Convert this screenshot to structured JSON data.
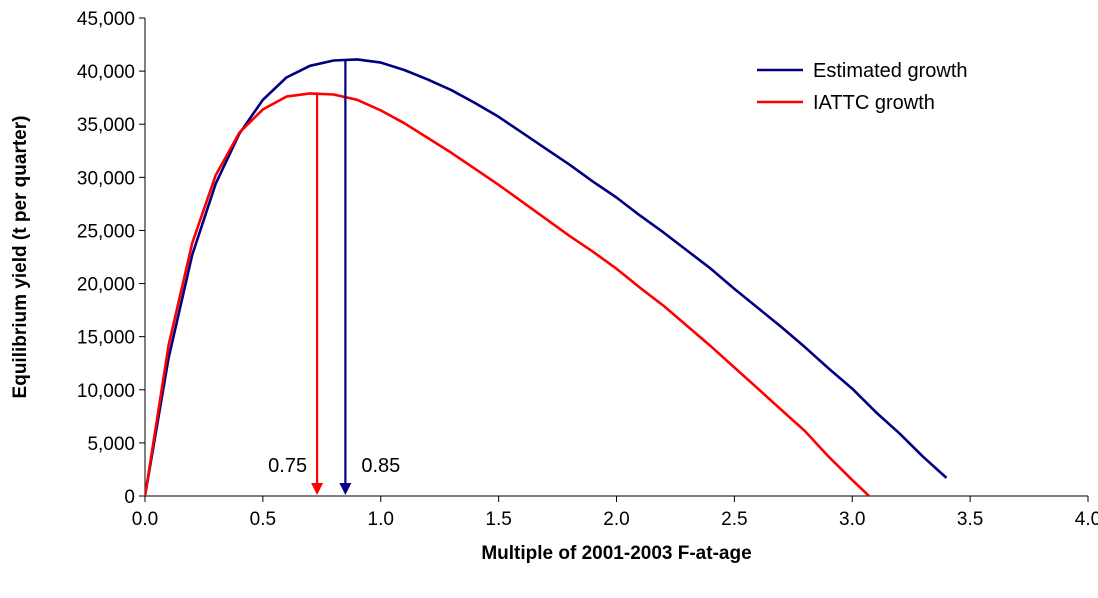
{
  "chart_data": {
    "type": "line",
    "title": "",
    "xlabel": "Multiple of 2001-2003 F-at-age",
    "ylabel": "Equilibrium yield (t per quarter)",
    "xlim": [
      0,
      4
    ],
    "ylim": [
      0,
      45000
    ],
    "xticks": [
      0,
      0.5,
      1,
      1.5,
      2,
      2.5,
      3,
      3.5,
      4
    ],
    "xtick_labels": [
      "0.0",
      "0.5",
      "1.0",
      "1.5",
      "2.0",
      "2.5",
      "3.0",
      "3.5",
      "4.0"
    ],
    "yticks": [
      0,
      5000,
      10000,
      15000,
      20000,
      25000,
      30000,
      35000,
      40000,
      45000
    ],
    "ytick_labels": [
      "0",
      "5,000",
      "10,000",
      "15,000",
      "20,000",
      "25,000",
      "30,000",
      "35,000",
      "40,000",
      "45,000"
    ],
    "grid": false,
    "legend_position": "top-right",
    "series": [
      {
        "name": "Estimated growth",
        "color": "#000080",
        "x": [
          0,
          0.1,
          0.2,
          0.3,
          0.4,
          0.5,
          0.6,
          0.7,
          0.8,
          0.9,
          1.0,
          1.1,
          1.2,
          1.3,
          1.4,
          1.5,
          1.6,
          1.7,
          1.8,
          1.9,
          2.0,
          2.1,
          2.2,
          2.3,
          2.4,
          2.5,
          2.6,
          2.7,
          2.8,
          2.9,
          3.0,
          3.1,
          3.2,
          3.3,
          3.4
        ],
        "y": [
          0,
          13000,
          22700,
          29400,
          34100,
          37300,
          39400,
          40500,
          41000,
          41100,
          40800,
          40100,
          39200,
          38200,
          37000,
          35700,
          34200,
          32700,
          31200,
          29600,
          28100,
          26400,
          24800,
          23100,
          21400,
          19500,
          17700,
          15900,
          14000,
          12000,
          10100,
          7900,
          5900,
          3700,
          1700
        ]
      },
      {
        "name": "IATTC growth",
        "color": "#ff0000",
        "x": [
          0,
          0.1,
          0.2,
          0.3,
          0.4,
          0.5,
          0.6,
          0.7,
          0.8,
          0.9,
          1.0,
          1.1,
          1.2,
          1.3,
          1.4,
          1.5,
          1.6,
          1.7,
          1.8,
          1.9,
          2.0,
          2.1,
          2.2,
          2.3,
          2.4,
          2.5,
          2.6,
          2.7,
          2.8,
          2.9,
          3.0,
          3.1
        ],
        "y": [
          0,
          14200,
          23800,
          30200,
          34200,
          36400,
          37600,
          37900,
          37800,
          37300,
          36300,
          35100,
          33700,
          32300,
          30800,
          29300,
          27700,
          26100,
          24500,
          23000,
          21400,
          19600,
          17900,
          16000,
          14100,
          12100,
          10100,
          8100,
          6100,
          3700,
          1500,
          -600
        ]
      }
    ],
    "annotations": [
      {
        "type": "arrow",
        "x": 0.73,
        "from_y": 38000,
        "to_y": 0,
        "color": "#ff0000",
        "label": "0.75",
        "label_side": "left"
      },
      {
        "type": "arrow",
        "x": 0.85,
        "from_y": 41100,
        "to_y": 0,
        "color": "#000080",
        "label": "0.85",
        "label_side": "right"
      }
    ]
  }
}
